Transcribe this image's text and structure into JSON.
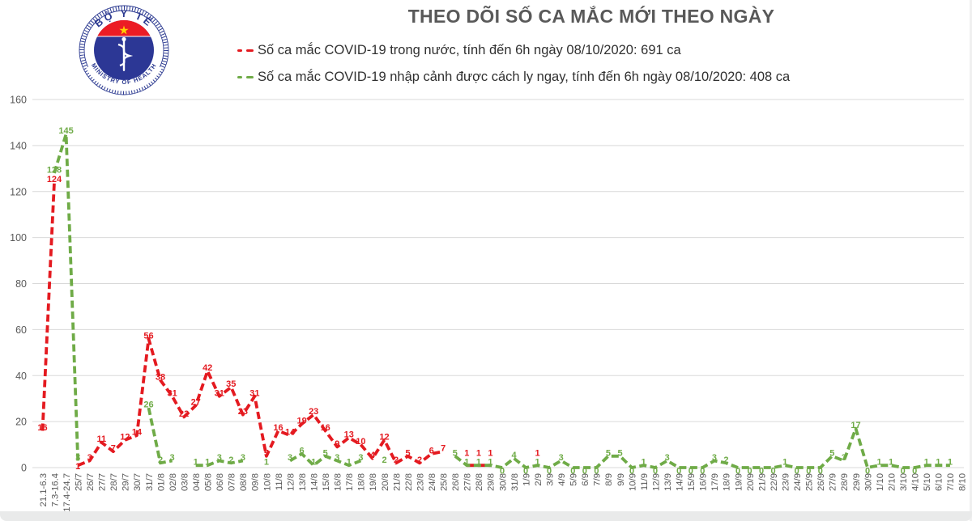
{
  "logo": {
    "top_text": "BỘ Y TẾ",
    "bottom_text": "MINISTRY OF HEALTH"
  },
  "colors": {
    "domestic_series": "#e41a20",
    "imported_series": "#6fab47",
    "title_text": "#595959",
    "axis_text": "#595959",
    "gridline": "#d9d9d9",
    "logo_navy": "#2b3990",
    "logo_red": "#ec1c24",
    "logo_star_yellow": "#ffd100"
  },
  "chart_data": {
    "type": "line",
    "title": "THEO DÕI SỐ CA MẮC MỚI THEO NGÀY",
    "xlabel": "",
    "ylabel": "",
    "ylim": [
      0,
      160
    ],
    "yticks": [
      0,
      20,
      40,
      60,
      80,
      100,
      120,
      140,
      160
    ],
    "grid": true,
    "legend_position": "top",
    "line_style": "dashed",
    "categories": [
      "21.1-6.3",
      "7.3-16.4",
      "17.4-24.7",
      "25/7",
      "26/7",
      "27/7",
      "28/7",
      "29/7",
      "30/7",
      "31/7",
      "01/8",
      "02/8",
      "03/8",
      "04/8",
      "05/8",
      "06/8",
      "07/8",
      "08/8",
      "09/8",
      "10/8",
      "11/8",
      "12/8",
      "13/8",
      "14/8",
      "15/8",
      "16/8",
      "17/8",
      "18/8",
      "19/8",
      "20/8",
      "21/8",
      "22/8",
      "23/8",
      "24/8",
      "25/8",
      "26/8",
      "27/8",
      "28/8",
      "29/8",
      "30/8",
      "31/8",
      "1/9",
      "2/9",
      "3/9",
      "4/9",
      "5/9",
      "6/9",
      "7/9",
      "8/9",
      "9/9",
      "10/9",
      "11/9",
      "12/9",
      "13/9",
      "14/9",
      "15/9",
      "16/9",
      "17/9",
      "18/9",
      "19/9",
      "20/9",
      "21/9",
      "22/9",
      "23/9",
      "24/9",
      "25/9",
      "26/9",
      "27/9",
      "28/9",
      "29/9",
      "30/9",
      "1/10",
      "2/10",
      "3/10",
      "4/10",
      "5/10",
      "6/10",
      "7/10",
      "8/10"
    ],
    "series": [
      {
        "key": "domestic",
        "name": "Số ca mắc COVID-19 trong nước",
        "legend_label": "Số ca mắc COVID-19 trong nước, tính đến 6h ngày 08/10/2020: 691 ca",
        "total": 691,
        "color": "#e41a20",
        "values": [
          16,
          124,
          null,
          1,
          3,
          11,
          7,
          12,
          14,
          56,
          38,
          31,
          22,
          27,
          42,
          31,
          35,
          23,
          31,
          5,
          16,
          14,
          19,
          23,
          16,
          9,
          13,
          10,
          4,
          12,
          2,
          5,
          2,
          6,
          7,
          null,
          1,
          1,
          1,
          null,
          null,
          null,
          1,
          null,
          null,
          null,
          null,
          null,
          null,
          null,
          null,
          null,
          null,
          null,
          null,
          null,
          null,
          null,
          null,
          null,
          null,
          null,
          null,
          null,
          null,
          null,
          null,
          null,
          null,
          null,
          null,
          null,
          null,
          null,
          null,
          null,
          null,
          null,
          null
        ]
      },
      {
        "key": "imported",
        "name": "Số ca mắc COVID-19 nhập cảnh được cách ly ngay",
        "legend_label": "Số ca mắc COVID-19 nhập cảnh được cách ly ngay, tính đến 6h ngày 08/10/2020: 408 ca",
        "total": 408,
        "color": "#6fab47",
        "values": [
          null,
          128,
          145,
          3,
          null,
          null,
          null,
          null,
          null,
          26,
          2,
          3,
          null,
          1,
          1,
          3,
          2,
          3,
          null,
          1,
          null,
          3,
          6,
          1,
          5,
          3,
          1,
          3,
          null,
          2,
          null,
          null,
          null,
          null,
          null,
          5,
          1,
          1,
          1,
          0,
          4,
          0,
          1,
          0,
          3,
          0,
          0,
          0,
          5,
          5,
          0,
          1,
          0,
          3,
          0,
          0,
          0,
          3,
          2,
          0,
          0,
          0,
          0,
          1,
          0,
          0,
          0,
          5,
          3,
          17,
          0,
          1,
          1,
          0,
          0,
          1,
          1,
          1,
          null
        ]
      }
    ]
  }
}
